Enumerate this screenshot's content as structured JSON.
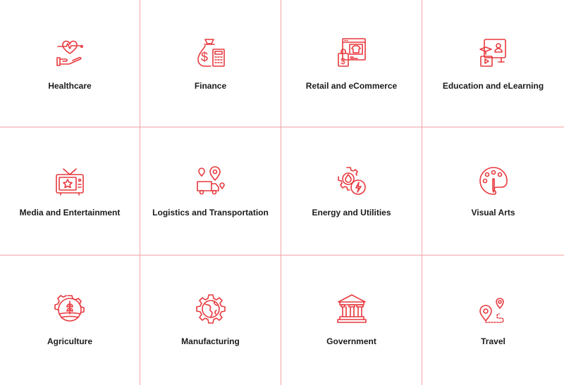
{
  "accent_color": "#e8393e",
  "divider_color": "#f1a3a5",
  "industries": [
    {
      "label": "Healthcare",
      "icon": "heart-hand-icon"
    },
    {
      "label": "Finance",
      "icon": "money-bag-calculator-icon"
    },
    {
      "label": "Retail and eCommerce",
      "icon": "online-store-icon"
    },
    {
      "label": "Education and eLearning",
      "icon": "elearning-monitor-icon"
    },
    {
      "label": "Media and Entertainment",
      "icon": "tv-star-icon"
    },
    {
      "label": "Logistics and Transportation",
      "icon": "delivery-truck-location-icon"
    },
    {
      "label": "Energy and Utilities",
      "icon": "gear-water-energy-icon"
    },
    {
      "label": "Visual Arts",
      "icon": "paint-palette-icon"
    },
    {
      "label": "Agriculture",
      "icon": "gear-plant-field-icon"
    },
    {
      "label": "Manufacturing",
      "icon": "gear-globe-icon"
    },
    {
      "label": "Government",
      "icon": "government-building-icon"
    },
    {
      "label": "Travel",
      "icon": "route-pins-icon"
    }
  ]
}
